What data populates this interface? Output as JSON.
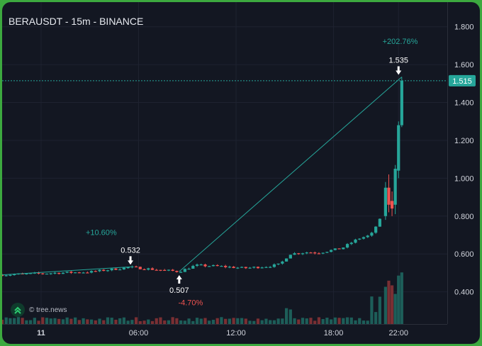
{
  "header": {
    "title": "BERAUSDT - 15m - BINANCE"
  },
  "watermark": {
    "text": "© tree.news",
    "icon": "chevron-up-double-icon"
  },
  "colors": {
    "background": "#131722",
    "frame": "#3ca93f",
    "up": "#26a69a",
    "down": "#ef5350",
    "text": "#d1d4dc",
    "annotation_up": "#26a69a",
    "annotation_down": "#ef5350"
  },
  "chart_data": {
    "type": "candlestick",
    "symbol": "BERAUSDT",
    "interval": "15m",
    "exchange": "BINANCE",
    "y_ticks": [
      "0.400",
      "0.600",
      "0.800",
      "1.000",
      "1.200",
      "1.400",
      "1.600",
      "1.800"
    ],
    "y_tick_values": [
      0.4,
      0.6,
      0.8,
      1.0,
      1.2,
      1.4,
      1.6,
      1.8
    ],
    "ylim": [
      0.23,
      1.93
    ],
    "x_ticks": [
      {
        "label": "11",
        "t": 0,
        "bold": true
      },
      {
        "label": "06:00",
        "t": 6
      },
      {
        "label": "12:00",
        "t": 12
      },
      {
        "label": "18:00",
        "t": 18
      },
      {
        "label": "22:00",
        "t": 22
      }
    ],
    "xlim": [
      -2.4,
      25.0
    ],
    "last_price": {
      "value": 1.515,
      "label": "1.515"
    },
    "points": [
      {
        "label": "0.532",
        "t": 5.5,
        "value": 0.532,
        "arrow": "down"
      },
      {
        "label": "0.507",
        "t": 8.5,
        "value": 0.507,
        "arrow": "up"
      },
      {
        "label": "1.535",
        "t": 22.0,
        "value": 1.535,
        "arrow": "down"
      }
    ],
    "changes": [
      {
        "label": "+10.60%",
        "t": 3.7,
        "y": 0.7,
        "direction": "up"
      },
      {
        "label": "-4.70%",
        "t": 9.2,
        "y": 0.33,
        "direction": "down"
      },
      {
        "label": "+202.76%",
        "t": 22.1,
        "y": 1.71,
        "direction": "up"
      }
    ],
    "lines": [
      {
        "from": {
          "t": -2.4,
          "v": 0.49
        },
        "to": {
          "t": 5.5,
          "v": 0.532
        }
      },
      {
        "from": {
          "t": 8.5,
          "v": 0.507
        },
        "to": {
          "t": 22.2,
          "v": 1.535
        }
      }
    ],
    "key_candles": [
      {
        "t": 21.2,
        "open": 0.8,
        "close": 0.95,
        "high": 0.98,
        "low": 0.78
      },
      {
        "t": 21.4,
        "open": 0.95,
        "close": 0.86,
        "high": 1.02,
        "low": 0.82
      },
      {
        "t": 21.6,
        "open": 0.88,
        "close": 0.84,
        "high": 0.93,
        "low": 0.8
      },
      {
        "t": 21.8,
        "open": 0.86,
        "close": 1.05,
        "high": 1.07,
        "low": 0.81
      },
      {
        "t": 22.0,
        "open": 1.04,
        "close": 1.28,
        "high": 1.3,
        "low": 1.0
      },
      {
        "t": 22.2,
        "open": 1.28,
        "close": 1.515,
        "high": 1.535,
        "low": 1.27
      }
    ]
  }
}
